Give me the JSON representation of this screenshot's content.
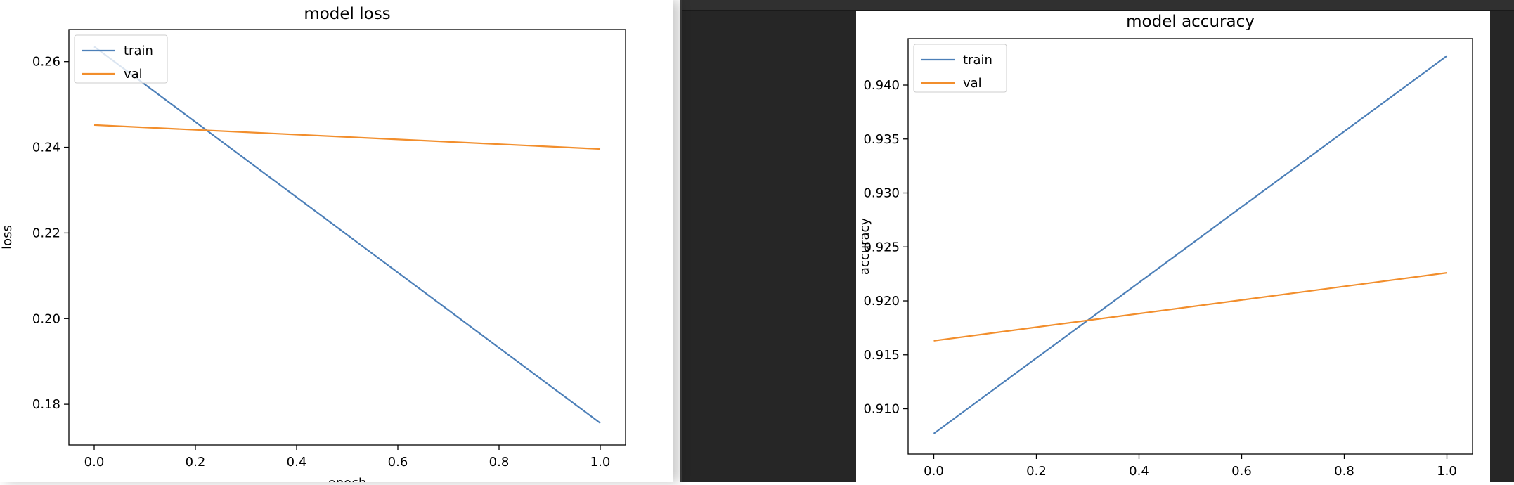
{
  "colors": {
    "train": "#4c7fb8",
    "val": "#f28e2c"
  },
  "chart_data": [
    {
      "type": "line",
      "title": "model loss",
      "xlabel": "epoch",
      "ylabel": "loss",
      "x": [
        0,
        1
      ],
      "xlim": [
        -0.05,
        1.05
      ],
      "ylim": [
        0.1705,
        0.2675
      ],
      "xticks": [
        "0.0",
        "0.2",
        "0.4",
        "0.6",
        "0.8",
        "1.0"
      ],
      "yticks": [
        "0.18",
        "0.20",
        "0.22",
        "0.24",
        "0.26"
      ],
      "grid": false,
      "legend_position": "upper left",
      "series": [
        {
          "name": "train",
          "values": [
            0.2635,
            0.1756
          ]
        },
        {
          "name": "val",
          "values": [
            0.2452,
            0.2396
          ]
        }
      ]
    },
    {
      "type": "line",
      "title": "model accuracy",
      "xlabel": "",
      "ylabel": "accuracy",
      "x": [
        0,
        1
      ],
      "xlim": [
        -0.05,
        1.05
      ],
      "ylim": [
        0.9058,
        0.9443
      ],
      "xticks": [
        "0.0",
        "0.2",
        "0.4",
        "0.6",
        "0.8",
        "1.0"
      ],
      "yticks": [
        "0.910",
        "0.915",
        "0.920",
        "0.925",
        "0.930",
        "0.935",
        "0.940"
      ],
      "grid": false,
      "legend_position": "upper left",
      "series": [
        {
          "name": "train",
          "values": [
            0.9077,
            0.9427
          ]
        },
        {
          "name": "val",
          "values": [
            0.9163,
            0.9226
          ]
        }
      ]
    }
  ]
}
